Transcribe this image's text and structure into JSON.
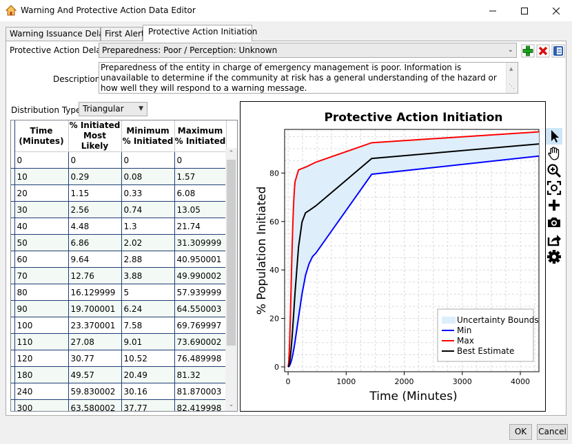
{
  "window": {
    "title": "Warning And Protective Action Data Editor"
  },
  "tabs": [
    {
      "label": "Warning Issuance Delay"
    },
    {
      "label": "First Alert"
    },
    {
      "label": "Protective Action Initiation"
    }
  ],
  "form": {
    "delay_label": "Protective Action Delay:",
    "delay_value": "Preparedness: Poor / Perception: Unknown",
    "description_label": "Description:",
    "description_value": "Preparedness of the entity in charge of emergency management is poor. Information is unavailable to determine if the community at risk has a general understanding of the hazard or how well they will respond to a warning message.",
    "distribution_label": "Distribution Type:",
    "distribution_value": "Triangular"
  },
  "table": {
    "headers": [
      [
        "Time",
        "(Minutes)"
      ],
      [
        "% Initiated",
        "Most Likely"
      ],
      [
        "Minimum",
        "% Initiated"
      ],
      [
        "Maximum",
        "% Initiated"
      ]
    ],
    "rows": [
      [
        "0",
        "0",
        "0",
        "0"
      ],
      [
        "10",
        "0.29",
        "0.08",
        "1.57"
      ],
      [
        "20",
        "1.15",
        "0.33",
        "6.08"
      ],
      [
        "30",
        "2.56",
        "0.74",
        "13.05"
      ],
      [
        "40",
        "4.48",
        "1.3",
        "21.74"
      ],
      [
        "50",
        "6.86",
        "2.02",
        "31.309999"
      ],
      [
        "60",
        "9.64",
        "2.88",
        "40.950001"
      ],
      [
        "70",
        "12.76",
        "3.88",
        "49.990002"
      ],
      [
        "80",
        "16.129999",
        "5",
        "57.939999"
      ],
      [
        "90",
        "19.700001",
        "6.24",
        "64.550003"
      ],
      [
        "100",
        "23.370001",
        "7.58",
        "69.769997"
      ],
      [
        "110",
        "27.08",
        "9.01",
        "73.690002"
      ],
      [
        "120",
        "30.77",
        "10.52",
        "76.489998"
      ],
      [
        "180",
        "49.57",
        "20.49",
        "81.32"
      ],
      [
        "240",
        "59.830002",
        "30.16",
        "81.870003"
      ],
      [
        "300",
        "63.580002",
        "37.77",
        "82.419998"
      ]
    ]
  },
  "chart_data": {
    "type": "line",
    "title": "Protective Action Initiation",
    "xlabel": "Time (Minutes)",
    "ylabel": "% Population Initiated",
    "xlim": [
      -60,
      4320
    ],
    "ylim": [
      -2,
      98
    ],
    "xticks": [
      0,
      1000,
      2000,
      3000,
      4000
    ],
    "yticks": [
      0,
      20,
      40,
      60,
      80
    ],
    "grid": true,
    "legend_position": "bottom-right",
    "x": [
      0,
      10,
      20,
      30,
      40,
      50,
      60,
      70,
      80,
      90,
      100,
      110,
      120,
      180,
      240,
      300,
      360,
      420,
      480,
      1440,
      4320
    ],
    "bounds_label": "Uncertainty Bounds",
    "bounds_color": "#deeefa",
    "series": [
      {
        "name": "Min",
        "color": "#0000ff",
        "values": [
          0,
          0.08,
          0.33,
          0.74,
          1.3,
          2.02,
          2.88,
          3.88,
          5,
          6.24,
          7.58,
          9.01,
          10.52,
          20.49,
          30.16,
          37.77,
          42.5,
          45.5,
          47,
          79.5,
          87
        ]
      },
      {
        "name": "Max",
        "color": "#ff0000",
        "values": [
          0,
          1.57,
          6.08,
          13.05,
          21.74,
          31.31,
          40.95,
          49.99,
          57.94,
          64.55,
          69.77,
          73.69,
          76.49,
          81.32,
          81.87,
          82.42,
          83.1,
          83.8,
          84.5,
          92.5,
          97
        ]
      },
      {
        "name": "Best Estimate",
        "color": "#000000",
        "values": [
          0,
          0.29,
          1.15,
          2.56,
          4.48,
          6.86,
          9.64,
          12.76,
          16.13,
          19.7,
          23.37,
          27.08,
          30.77,
          49.57,
          59.83,
          63.58,
          64.5,
          65.5,
          66.5,
          86,
          92
        ]
      }
    ]
  },
  "toolbar_icons": [
    "pointer-icon",
    "pan-hand-icon",
    "zoom-in-icon",
    "fit-icon",
    "add-icon",
    "camera-icon",
    "export-icon",
    "settings-icon"
  ],
  "buttons": {
    "ok": "OK",
    "cancel": "Cancel"
  }
}
